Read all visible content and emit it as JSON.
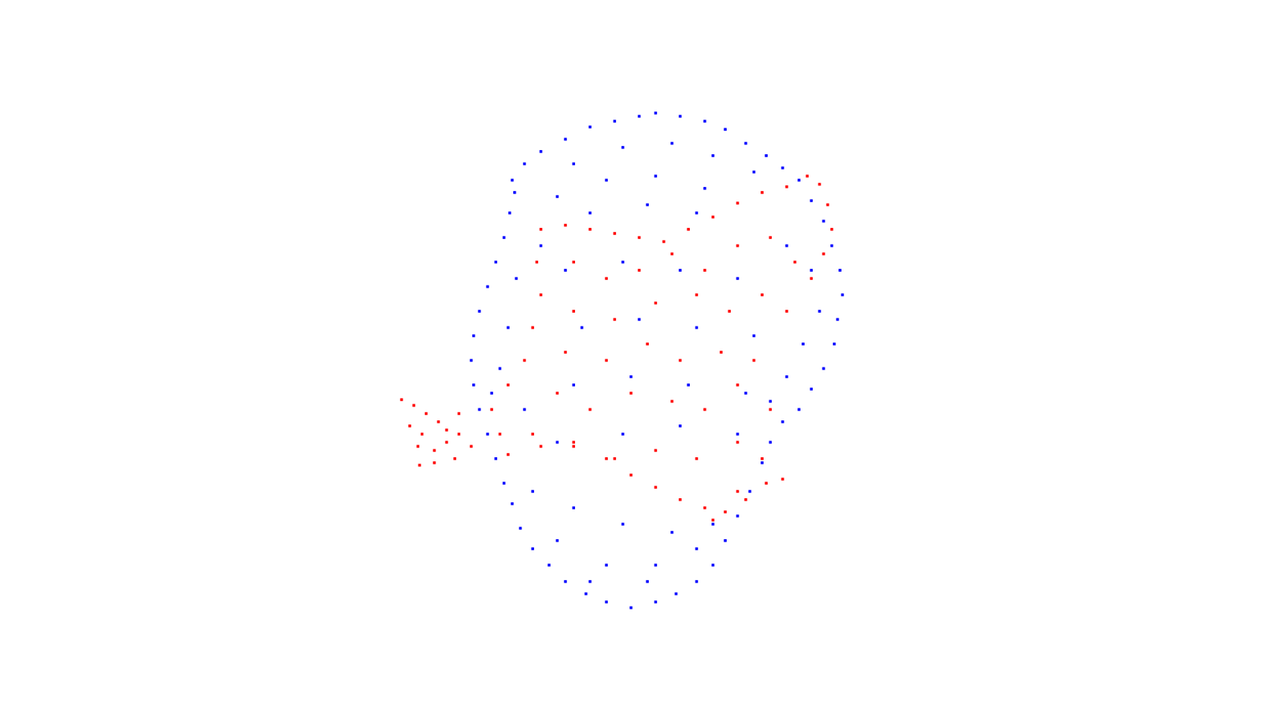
{
  "chart_data": {
    "type": "scatter",
    "xlim": [
      0,
      1568
    ],
    "ylim": [
      862,
      0
    ],
    "tick_labels": false,
    "grid": false,
    "series": [
      {
        "color": "#0000ff",
        "marker": "square",
        "x": [
          625,
          640,
          660,
          690,
          720,
          750,
          780,
          800,
          830,
          860,
          885,
          910,
          935,
          955,
          975,
          990,
          1005,
          1015,
          1025,
          1028,
          1022,
          1018,
          1005,
          990,
          975,
          955,
          940,
          930,
          915,
          900,
          885,
          870,
          850,
          825,
          800,
          770,
          740,
          715,
          690,
          670,
          650,
          635,
          625,
          615,
          605,
          595,
          585,
          578,
          575,
          578,
          585,
          595,
          605,
          615,
          622,
          628,
          700,
          760,
          820,
          870,
          920,
          680,
          740,
          800,
          860,
          660,
          630,
          620,
          610,
          640,
          600,
          960,
          990,
          1000,
          980,
          960,
          940,
          720,
          790,
          850,
          690,
          760,
          830,
          900,
          710,
          780,
          850,
          920,
          700,
          770,
          840,
          910,
          680,
          760,
          830,
          900,
          650,
          700,
          760,
          820,
          870,
          680,
          740,
          800,
          850,
          720,
          790
        ],
        "y": [
          220,
          200,
          185,
          170,
          155,
          148,
          142,
          138,
          142,
          148,
          158,
          175,
          190,
          205,
          220,
          245,
          270,
          300,
          330,
          360,
          390,
          420,
          450,
          475,
          500,
          515,
          540,
          565,
          600,
          630,
          660,
          690,
          710,
          725,
          735,
          742,
          735,
          725,
          710,
          690,
          670,
          645,
          615,
          590,
          560,
          530,
          500,
          470,
          440,
          410,
          380,
          350,
          320,
          290,
          260,
          235,
          200,
          180,
          175,
          190,
          210,
          240,
          220,
          215,
          230,
          300,
          340,
          400,
          450,
          500,
          480,
          300,
          330,
          380,
          420,
          460,
          490,
          260,
          250,
          260,
          330,
          320,
          330,
          340,
          400,
          390,
          400,
          410,
          470,
          460,
          470,
          480,
          540,
          530,
          520,
          530,
          600,
          620,
          640,
          650,
          640,
          660,
          690,
          690,
          670,
          710,
          710
        ]
      },
      {
        "color": "#ff0000",
        "marker": "square",
        "x": [
          490,
          505,
          520,
          535,
          515,
          500,
          510,
          530,
          545,
          560,
          512,
          530,
          555,
          575,
          560,
          545,
          660,
          690,
          720,
          750,
          780,
          810,
          840,
          870,
          900,
          930,
          960,
          985,
          1000,
          1010,
          1015,
          1005,
          990,
          655,
          660,
          650,
          640,
          620,
          600,
          610,
          700,
          740,
          780,
          820,
          860,
          900,
          940,
          970,
          700,
          750,
          800,
          850,
          890,
          930,
          960,
          690,
          740,
          790,
          830,
          880,
          920,
          680,
          720,
          770,
          820,
          860,
          900,
          940,
          650,
          700,
          750,
          800,
          850,
          900,
          930,
          620,
          660,
          700,
          740,
          770,
          800,
          830,
          860,
          885,
          910,
          935,
          955,
          870,
          900
        ],
        "y": [
          488,
          495,
          505,
          515,
          530,
          520,
          545,
          550,
          540,
          530,
          568,
          565,
          560,
          545,
          505,
          525,
          280,
          275,
          280,
          285,
          290,
          295,
          280,
          265,
          248,
          235,
          228,
          215,
          225,
          250,
          280,
          310,
          340,
          320,
          360,
          400,
          440,
          470,
          500,
          530,
          320,
          340,
          330,
          310,
          330,
          300,
          290,
          320,
          380,
          390,
          370,
          360,
          380,
          360,
          380,
          430,
          440,
          420,
          440,
          430,
          440,
          480,
          500,
          480,
          490,
          500,
          470,
          500,
          530,
          540,
          560,
          550,
          560,
          540,
          560,
          555,
          545,
          545,
          560,
          580,
          595,
          610,
          620,
          625,
          610,
          590,
          585,
          635,
          600
        ]
      }
    ]
  }
}
